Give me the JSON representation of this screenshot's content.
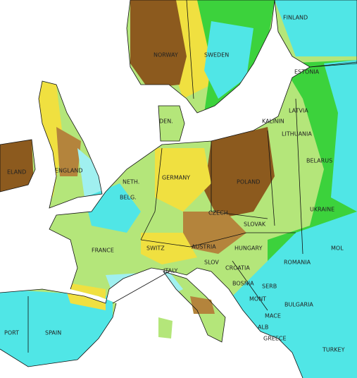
{
  "labels": [
    "NORWAY",
    "SWEDEN",
    "FINLAND",
    "ESTONIA",
    "LATVIA",
    "LITHUANIA",
    "KALININ",
    "BELARUS",
    "DEN.",
    "ELAND",
    "ENGLAND",
    "NETH.",
    "BELG.",
    "GERMANY",
    "POLAND",
    "UKRAINE",
    "CZECH",
    "SLOVAK",
    "FRANCE",
    "SWITZ",
    "AUSTRIA",
    "HUNGARY",
    "MOL",
    "ROMANIA",
    "SLOV",
    "CROATIA",
    "BOSNIA",
    "SERB",
    "MONT",
    "MACE",
    "BULGARIA",
    "ITALY",
    "ALB",
    "GREECE",
    "TURKEY",
    "SPAIN",
    "PORT"
  ]
}
